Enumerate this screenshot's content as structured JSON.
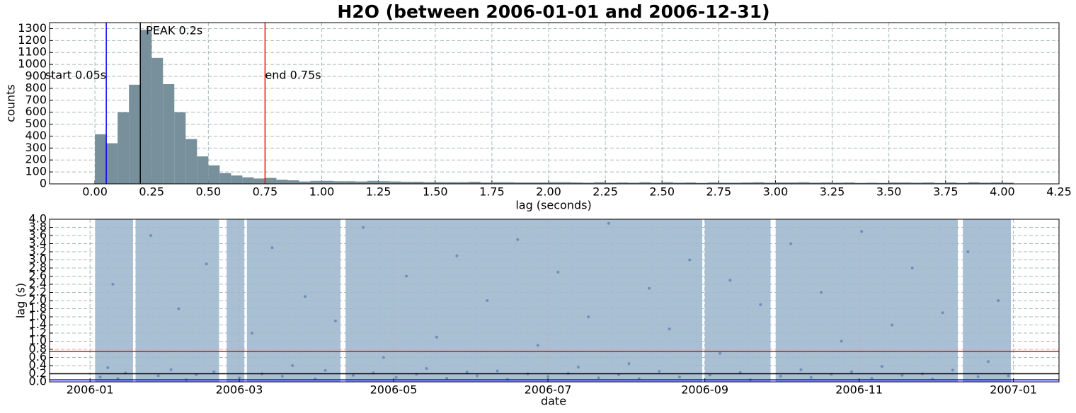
{
  "chart_data": [
    {
      "type": "histogram",
      "title": "H2O (between 2006-01-01 and 2006-12-31)",
      "x_label": "lag (seconds)",
      "y_label": "counts",
      "color": "#77909b",
      "bins": [
        0,
        0.05,
        0.1,
        0.15,
        0.2,
        0.25,
        0.3,
        0.35,
        0.4,
        0.45,
        0.5,
        0.55,
        0.6,
        0.65,
        0.7,
        0.75,
        0.8,
        0.85,
        0.9,
        0.95,
        1.0,
        1.05,
        1.1,
        1.15,
        1.2,
        1.25,
        1.3,
        1.35,
        1.4,
        1.45,
        1.5,
        1.55,
        1.6,
        1.65,
        1.7,
        1.75,
        1.8,
        1.85,
        1.9,
        1.95,
        2.0,
        2.05,
        2.1,
        2.15,
        2.2,
        2.25,
        2.3,
        2.35,
        2.4,
        2.45,
        2.5,
        2.55,
        2.6,
        2.65,
        2.7,
        2.75,
        2.8,
        2.85,
        2.9,
        2.95,
        3.0,
        3.05,
        3.1,
        3.15,
        3.2,
        3.25,
        3.3,
        3.35,
        3.4,
        3.45,
        3.5,
        3.55,
        3.6,
        3.65,
        3.7,
        3.75,
        3.8,
        3.85,
        3.9,
        3.95,
        4.0,
        4.05
      ],
      "values": [
        415,
        340,
        600,
        830,
        1290,
        1055,
        835,
        600,
        375,
        230,
        155,
        90,
        70,
        55,
        45,
        50,
        35,
        30,
        20,
        25,
        25,
        22,
        22,
        20,
        25,
        22,
        20,
        18,
        18,
        15,
        15,
        15,
        15,
        18,
        12,
        14,
        14,
        12,
        12,
        12,
        14,
        14,
        12,
        10,
        14,
        10,
        12,
        10,
        14,
        10,
        14,
        10,
        12,
        8,
        12,
        10,
        10,
        12,
        14,
        10,
        12,
        12,
        14,
        10,
        12,
        10,
        12,
        8,
        10,
        8,
        12,
        12,
        10,
        12,
        8,
        12,
        8,
        14,
        10,
        12,
        10
      ],
      "xlim": [
        -0.2,
        4.25
      ],
      "xticks": [
        {
          "value": 0,
          "label": "0.00"
        },
        {
          "value": 0.25,
          "label": "0.25"
        },
        {
          "value": 0.5,
          "label": "0.50"
        },
        {
          "value": 0.75,
          "label": "0.75"
        },
        {
          "value": 1,
          "label": "1.00"
        },
        {
          "value": 1.25,
          "label": "1.25"
        },
        {
          "value": 1.5,
          "label": "1.50"
        },
        {
          "value": 1.75,
          "label": "1.75"
        },
        {
          "value": 2,
          "label": "2.00"
        },
        {
          "value": 2.25,
          "label": "2.25"
        },
        {
          "value": 2.5,
          "label": "2.50"
        },
        {
          "value": 2.75,
          "label": "2.75"
        },
        {
          "value": 3,
          "label": "3.00"
        },
        {
          "value": 3.25,
          "label": "3.25"
        },
        {
          "value": 3.5,
          "label": "3.50"
        },
        {
          "value": 3.75,
          "label": "3.75"
        },
        {
          "value": 4,
          "label": "4.00"
        },
        {
          "value": 4.25,
          "label": "4.25"
        }
      ],
      "ylim": [
        0,
        1350
      ],
      "yticks": [
        0,
        100,
        200,
        300,
        400,
        500,
        600,
        700,
        800,
        900,
        1000,
        1100,
        1200,
        1300
      ],
      "grid": true,
      "annotations": [
        {
          "x": 0.05,
          "label": "start 0.05s",
          "color": "#0000ff"
        },
        {
          "x": 0.2,
          "label": "PEAK 0.2s",
          "color": "#000000"
        },
        {
          "x": 0.75,
          "label": "end 0.75s",
          "color": "#ff0000"
        }
      ]
    },
    {
      "type": "scatter",
      "x_label": "date",
      "y_label": "lag (s)",
      "color": "#5b80b2",
      "band_color": "#a9bfd4",
      "spans": [
        [
          "2006-01-03",
          "2006-01-18"
        ],
        [
          "2006-01-19",
          "2006-02-21"
        ],
        [
          "2006-02-24",
          "2006-03-03"
        ],
        [
          "2006-03-04",
          "2006-04-10"
        ],
        [
          "2006-04-12",
          "2006-08-31"
        ],
        [
          "2006-09-01",
          "2006-09-27"
        ],
        [
          "2006-09-29",
          "2006-12-10"
        ],
        [
          "2006-12-12",
          "2006-12-31"
        ]
      ],
      "x": [
        "2006-01-05",
        "2006-01-08",
        "2006-01-10",
        "2006-01-12",
        "2006-01-15",
        "2006-01-25",
        "2006-01-28",
        "2006-02-02",
        "2006-02-05",
        "2006-02-08",
        "2006-02-12",
        "2006-02-16",
        "2006-02-19",
        "2006-03-01",
        "2006-03-06",
        "2006-03-10",
        "2006-03-14",
        "2006-03-18",
        "2006-03-22",
        "2006-03-27",
        "2006-03-31",
        "2006-04-04",
        "2006-04-08",
        "2006-04-15",
        "2006-04-19",
        "2006-04-23",
        "2006-04-27",
        "2006-05-02",
        "2006-05-06",
        "2006-05-10",
        "2006-05-14",
        "2006-05-18",
        "2006-05-22",
        "2006-05-26",
        "2006-05-30",
        "2006-06-03",
        "2006-06-07",
        "2006-06-11",
        "2006-06-15",
        "2006-06-19",
        "2006-06-23",
        "2006-06-27",
        "2006-07-01",
        "2006-07-05",
        "2006-07-09",
        "2006-07-13",
        "2006-07-17",
        "2006-07-21",
        "2006-07-25",
        "2006-07-29",
        "2006-08-02",
        "2006-08-06",
        "2006-08-10",
        "2006-08-14",
        "2006-08-18",
        "2006-08-22",
        "2006-08-26",
        "2006-09-03",
        "2006-09-07",
        "2006-09-11",
        "2006-09-15",
        "2006-09-19",
        "2006-09-23",
        "2006-10-01",
        "2006-10-05",
        "2006-10-09",
        "2006-10-13",
        "2006-10-17",
        "2006-10-21",
        "2006-10-25",
        "2006-10-29",
        "2006-11-02",
        "2006-11-06",
        "2006-11-10",
        "2006-11-14",
        "2006-11-18",
        "2006-11-22",
        "2006-11-26",
        "2006-11-30",
        "2006-12-04",
        "2006-12-08",
        "2006-12-14",
        "2006-12-18",
        "2006-12-22",
        "2006-12-26",
        "2006-12-30"
      ],
      "values": [
        0.12,
        0.35,
        2.4,
        0.08,
        0.22,
        3.6,
        0.15,
        0.3,
        1.8,
        0.05,
        0.18,
        2.9,
        0.25,
        0.1,
        1.2,
        0.2,
        3.3,
        0.14,
        0.4,
        2.1,
        0.07,
        0.28,
        1.5,
        0.16,
        3.8,
        0.22,
        0.6,
        0.11,
        2.6,
        0.19,
        0.33,
        1.1,
        0.09,
        3.1,
        0.24,
        0.15,
        2.0,
        0.27,
        0.06,
        3.5,
        0.2,
        0.9,
        0.13,
        2.7,
        0.21,
        0.36,
        1.6,
        0.1,
        3.9,
        0.18,
        0.45,
        0.08,
        2.3,
        0.26,
        1.3,
        0.12,
        3.0,
        0.17,
        0.7,
        2.5,
        0.23,
        0.05,
        1.9,
        0.14,
        3.4,
        0.3,
        0.11,
        2.2,
        0.19,
        1.0,
        0.25,
        3.7,
        0.09,
        0.38,
        1.4,
        0.16,
        2.8,
        0.2,
        0.07,
        1.7,
        0.29,
        3.2,
        0.13,
        0.5,
        2.0,
        0.15
      ],
      "xlim": [
        "2005-12-16",
        "2007-01-19"
      ],
      "xticks": [
        {
          "value": "2006-01-01",
          "label": "2006-01"
        },
        {
          "value": "2006-03-01",
          "label": "2006-03"
        },
        {
          "value": "2006-05-01",
          "label": "2006-05"
        },
        {
          "value": "2006-07-01",
          "label": "2006-07"
        },
        {
          "value": "2006-09-01",
          "label": "2006-09"
        },
        {
          "value": "2006-11-01",
          "label": "2006-11"
        },
        {
          "value": "2007-01-01",
          "label": "2007-01"
        }
      ],
      "ylim": [
        0,
        4.0
      ],
      "yticks": [
        {
          "value": 0,
          "label": "0.0"
        },
        {
          "value": 0.2,
          "label": "0.2"
        },
        {
          "value": 0.4,
          "label": "0.4"
        },
        {
          "value": 0.6,
          "label": "0.6"
        },
        {
          "value": 0.8,
          "label": "0.8"
        },
        {
          "value": 1,
          "label": "1.0"
        },
        {
          "value": 1.2,
          "label": "1.2"
        },
        {
          "value": 1.4,
          "label": "1.4"
        },
        {
          "value": 1.6,
          "label": "1.6"
        },
        {
          "value": 1.8,
          "label": "1.8"
        },
        {
          "value": 2,
          "label": "2.0"
        },
        {
          "value": 2.2,
          "label": "2.2"
        },
        {
          "value": 2.4,
          "label": "2.4"
        },
        {
          "value": 2.6,
          "label": "2.6"
        },
        {
          "value": 2.8,
          "label": "2.8"
        },
        {
          "value": 3,
          "label": "3.0"
        },
        {
          "value": 3.2,
          "label": "3.2"
        },
        {
          "value": 3.4,
          "label": "3.4"
        },
        {
          "value": 3.6,
          "label": "3.6"
        },
        {
          "value": 3.8,
          "label": "3.8"
        },
        {
          "value": 4,
          "label": "4.0"
        }
      ],
      "grid": true,
      "hlines": [
        {
          "value": 0.75,
          "color": "#ff0000"
        },
        {
          "value": 0.2,
          "color": "#000000"
        },
        {
          "value": 0.05,
          "color": "#0000ff"
        }
      ]
    }
  ]
}
